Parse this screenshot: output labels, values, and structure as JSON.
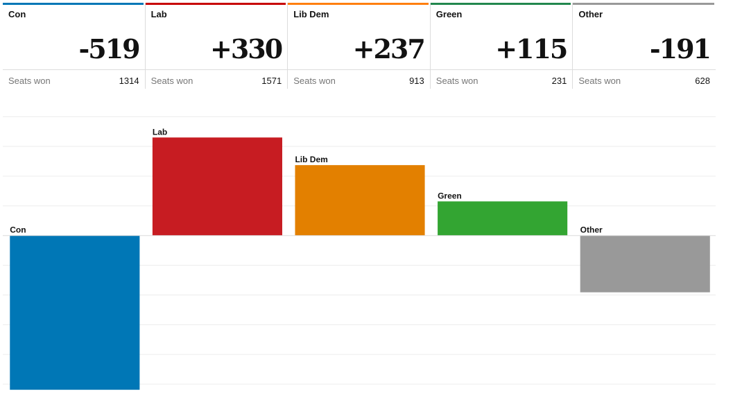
{
  "cards": [
    {
      "party": "Con",
      "change": "-519",
      "seats_label": "Seats won",
      "seats": "1314",
      "color": "#0077b6"
    },
    {
      "party": "Lab",
      "change": "+330",
      "seats_label": "Seats won",
      "seats": "1571",
      "color": "#c70000"
    },
    {
      "party": "Lib Dem",
      "change": "+237",
      "seats_label": "Seats won",
      "seats": "913",
      "color": "#ff7f0f"
    },
    {
      "party": "Green",
      "change": "+115",
      "seats_label": "Seats won",
      "seats": "231",
      "color": "#22874d"
    },
    {
      "party": "Other",
      "change": "-191",
      "seats_label": "Seats won",
      "seats": "628",
      "color": "#999999"
    }
  ],
  "chart_data": {
    "type": "bar",
    "categories": [
      "Con",
      "Lab",
      "Lib Dem",
      "Green",
      "Other"
    ],
    "values": [
      -519,
      330,
      237,
      115,
      -191
    ],
    "colors": [
      "#0077b6",
      "#c71c22",
      "#e38000",
      "#33a532",
      "#999999"
    ],
    "ylim": [
      -528,
      410
    ],
    "grid": true,
    "title": "",
    "xlabel": "",
    "ylabel": ""
  }
}
